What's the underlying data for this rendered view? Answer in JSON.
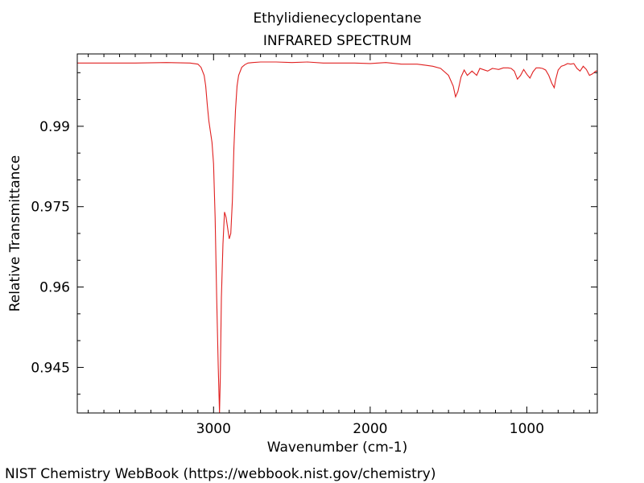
{
  "chart_data": {
    "type": "line",
    "title": "Ethylidienecyclopentane",
    "subtitle": "INFRARED SPECTRUM",
    "xlabel": "Wavenumber (cm-1)",
    "ylabel": "Relative Transmittance",
    "xlim": [
      3870,
      550
    ],
    "ylim": [
      0.9365,
      1.0035
    ],
    "x_ticks": [
      3000,
      2000,
      1000
    ],
    "x_tick_labels": [
      "3000",
      "2000",
      "1000"
    ],
    "y_ticks": [
      0.99,
      0.975,
      0.96,
      0.945
    ],
    "y_tick_labels": [
      "0.99",
      "0.975",
      "0.96",
      "0.945"
    ],
    "grid": false,
    "line_color": "#e02020",
    "series": [
      {
        "x": [
          3870,
          3700,
          3500,
          3300,
          3150,
          3100,
          3080,
          3060,
          3050,
          3040,
          3030,
          3020,
          3010,
          3000,
          2990,
          2980,
          2970,
          2962,
          2957,
          2950,
          2940,
          2930,
          2920,
          2910,
          2900,
          2890,
          2880,
          2870,
          2860,
          2850,
          2840,
          2820,
          2800,
          2780,
          2750,
          2700,
          2600,
          2500,
          2400,
          2300,
          2200,
          2100,
          2000,
          1900,
          1800,
          1700,
          1650,
          1600,
          1550,
          1500,
          1470,
          1455,
          1440,
          1420,
          1400,
          1380,
          1350,
          1320,
          1300,
          1280,
          1250,
          1220,
          1200,
          1180,
          1150,
          1120,
          1100,
          1080,
          1060,
          1040,
          1020,
          1000,
          980,
          960,
          940,
          920,
          900,
          880,
          860,
          840,
          825,
          815,
          800,
          780,
          760,
          740,
          720,
          700,
          680,
          660,
          640,
          620,
          600,
          580,
          560,
          550
        ],
        "y": [
          1.0018,
          1.0018,
          1.0018,
          1.0019,
          1.0018,
          1.0016,
          1.001,
          0.9995,
          0.9975,
          0.994,
          0.991,
          0.989,
          0.987,
          0.983,
          0.973,
          0.958,
          0.945,
          0.9365,
          0.943,
          0.958,
          0.968,
          0.974,
          0.973,
          0.971,
          0.969,
          0.97,
          0.976,
          0.986,
          0.993,
          0.9975,
          0.9995,
          1.001,
          1.0015,
          1.0018,
          1.0019,
          1.002,
          1.002,
          1.0019,
          1.002,
          1.0018,
          1.0018,
          1.0018,
          1.0017,
          1.0019,
          1.0016,
          1.0016,
          1.0014,
          1.0012,
          1.0008,
          0.9995,
          0.9975,
          0.9955,
          0.9965,
          0.9992,
          1.0005,
          0.9995,
          1.0003,
          0.9995,
          1.0008,
          1.0006,
          1.0003,
          1.0008,
          1.0007,
          1.0006,
          1.0009,
          1.0009,
          1.0008,
          1.0003,
          0.9988,
          0.9995,
          1.0006,
          0.9997,
          0.999,
          1.0002,
          1.0009,
          1.0009,
          1.0008,
          1.0005,
          0.9995,
          0.998,
          0.9972,
          0.9988,
          1.0005,
          1.0012,
          1.0014,
          1.0017,
          1.0016,
          1.0017,
          1.0008,
          1.0003,
          1.0012,
          1.0006,
          0.9995,
          0.9998,
          1.0003,
          1.0003
        ]
      }
    ]
  },
  "footer": {
    "credit": "NIST Chemistry WebBook (https://webbook.nist.gov/chemistry)"
  }
}
